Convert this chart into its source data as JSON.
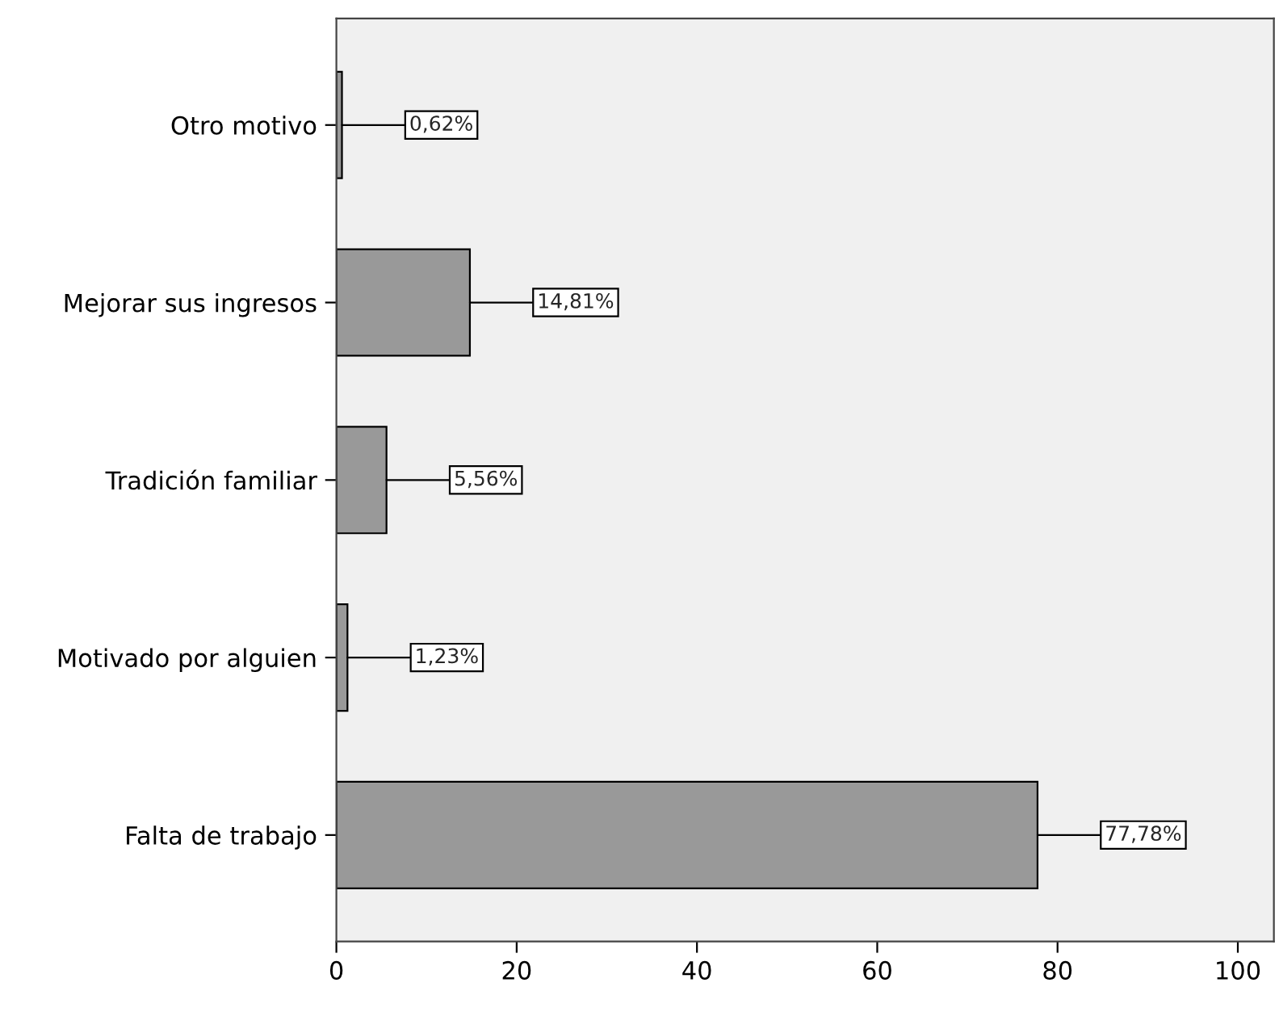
{
  "chart_data": {
    "type": "bar",
    "orientation": "horizontal",
    "categories": [
      "Otro motivo",
      "Mejorar sus ingresos",
      "Tradición familiar",
      "Motivado por alguien",
      "Falta de trabajo"
    ],
    "values": [
      0.62,
      14.81,
      5.56,
      1.23,
      77.78
    ],
    "value_labels": [
      "0,62%",
      "14,81%",
      "5,56%",
      "1,23%",
      "77,78%"
    ],
    "color": "#999999",
    "xlim": [
      0,
      104
    ],
    "xticks": [
      0,
      20,
      40,
      60,
      80,
      100
    ],
    "grid": false,
    "legend": false
  }
}
